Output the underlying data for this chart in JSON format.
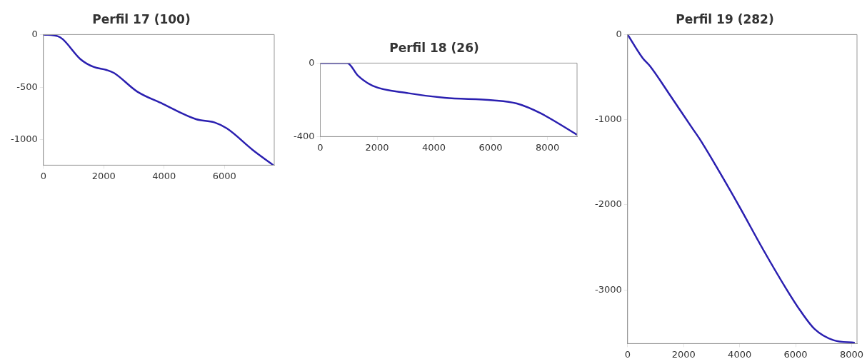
{
  "chart_data": [
    {
      "type": "line",
      "title": "Perfil 17 (100)",
      "x": [
        0,
        468,
        640,
        1230,
        1660,
        2085,
        2340,
        3100,
        3960,
        5060,
        5660,
        6085,
        6940,
        7620
      ],
      "series": [
        {
          "color": "#2a1fb0",
          "values": [
            0,
            -15,
            -44,
            -234,
            -307,
            -336,
            -365,
            -540,
            -658,
            -804,
            -833,
            -892,
            -1096,
            -1240
          ]
        }
      ],
      "xlim": [
        0,
        7650
      ],
      "xticks": [
        0,
        2000,
        4000,
        6000
      ],
      "ylim": [
        -1240,
        0
      ],
      "yticks": [
        -1000,
        -500,
        0
      ],
      "grid": false,
      "legend": false,
      "marker": "none"
    },
    {
      "type": "line",
      "title": "Perfil 18 (26)",
      "x": [
        0,
        950,
        1330,
        1840,
        3110,
        4380,
        6070,
        6920,
        7770,
        9040
      ],
      "series": [
        {
          "color": "#2a1fb0",
          "values": [
            0,
            0,
            -69,
            -123,
            -164,
            -189,
            -202,
            -220,
            -274,
            -390
          ]
        }
      ],
      "xlim": [
        0,
        9040
      ],
      "xticks": [
        0,
        2000,
        4000,
        6000,
        8000
      ],
      "ylim": [
        -400,
        0
      ],
      "yticks": [
        -400,
        0
      ],
      "grid": false,
      "legend": false,
      "marker": "none"
    },
    {
      "type": "line",
      "title": "Perfil 19 (282)",
      "x": [
        0,
        546,
        798,
        1470,
        2310,
        2560,
        3150,
        3990,
        4830,
        5670,
        6180,
        6680,
        7350,
        8110
      ],
      "series": [
        {
          "color": "#2a1fb0",
          "values": [
            0,
            -280,
            -370,
            -690,
            -1100,
            -1220,
            -1540,
            -2020,
            -2520,
            -2990,
            -3250,
            -3460,
            -3590,
            -3620
          ]
        }
      ],
      "xlim": [
        0,
        8190
      ],
      "xticks": [
        0,
        2000,
        4000,
        6000,
        8000
      ],
      "ylim": [
        -3630,
        0
      ],
      "yticks": [
        -3000,
        -2000,
        -1000,
        0
      ],
      "grid": false,
      "legend": false,
      "marker": "none"
    }
  ]
}
